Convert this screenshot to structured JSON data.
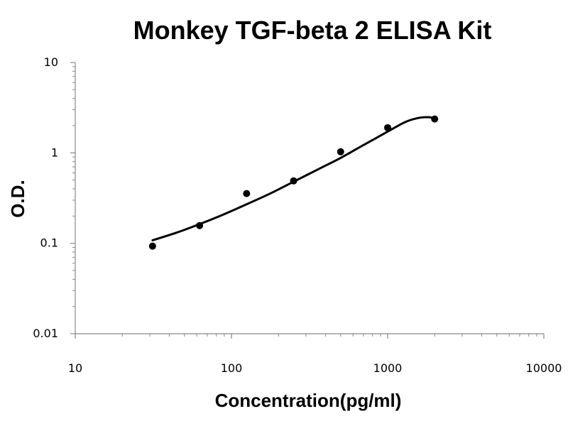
{
  "chart_data": {
    "type": "scatter",
    "title": "Monkey TGF-beta 2 ELISA Kit",
    "xlabel": "Concentration(pg/ml)",
    "ylabel": "O.D.",
    "x_scale": "log",
    "y_scale": "log",
    "xlim": [
      10,
      10000
    ],
    "ylim": [
      0.01,
      10
    ],
    "x_ticks": [
      10,
      100,
      1000,
      10000
    ],
    "x_tick_labels": [
      "10",
      "100",
      "1000",
      "10000"
    ],
    "y_ticks": [
      0.01,
      0.1,
      1,
      10
    ],
    "y_tick_labels": [
      "0.01",
      "0.1",
      "1",
      "10"
    ],
    "grid": false,
    "legend": "none",
    "point_color": "#000000",
    "curve_color": "#000000",
    "series": [
      {
        "x": [
          31.25,
          62.5,
          125,
          250,
          500,
          1000,
          2000
        ],
        "y": [
          0.093,
          0.157,
          0.355,
          0.49,
          1.03,
          1.9,
          2.37
        ]
      }
    ],
    "fit_curve": {
      "x": [
        31.25,
        45,
        62.5,
        90,
        125,
        180,
        250,
        360,
        500,
        700,
        1000,
        1300,
        1600,
        1850,
        2000
      ],
      "y": [
        0.108,
        0.132,
        0.163,
        0.21,
        0.27,
        0.36,
        0.48,
        0.66,
        0.88,
        1.22,
        1.72,
        2.2,
        2.45,
        2.48,
        2.4
      ]
    }
  }
}
